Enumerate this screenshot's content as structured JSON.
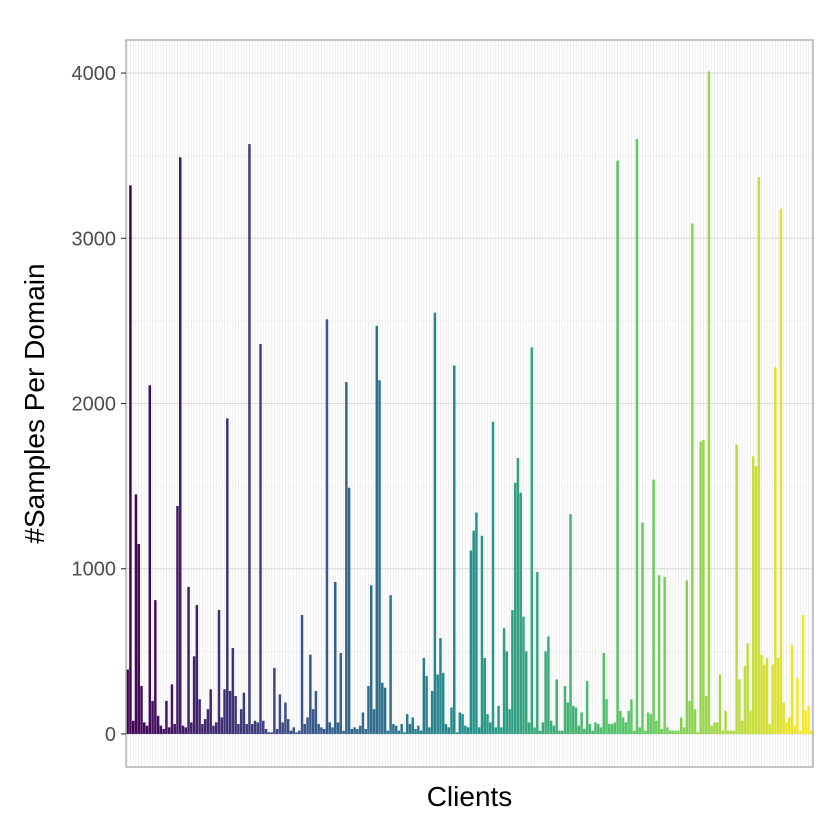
{
  "chart_data": {
    "type": "bar",
    "title": "",
    "xlabel": "Clients",
    "ylabel": "#Samples Per Domain",
    "ylim": [
      -200,
      4200
    ],
    "yticks": [
      0,
      1000,
      2000,
      3000,
      4000
    ],
    "grid": true,
    "legend": "none",
    "palette": [
      "#440154",
      "#3b528b",
      "#21908c",
      "#5dc963",
      "#fde725"
    ],
    "values": [
      390,
      3320,
      80,
      1450,
      1150,
      290,
      70,
      50,
      2110,
      200,
      810,
      110,
      50,
      30,
      200,
      40,
      300,
      60,
      1380,
      3490,
      50,
      40,
      890,
      70,
      470,
      780,
      210,
      60,
      90,
      150,
      270,
      50,
      70,
      750,
      100,
      270,
      1910,
      260,
      520,
      230,
      60,
      150,
      250,
      60,
      3570,
      60,
      80,
      70,
      2360,
      80,
      30,
      10,
      10,
      400,
      30,
      240,
      70,
      190,
      90,
      20,
      40,
      10,
      20,
      720,
      60,
      100,
      480,
      150,
      260,
      60,
      40,
      30,
      2510,
      70,
      40,
      920,
      70,
      490,
      20,
      2130,
      1490,
      30,
      40,
      30,
      50,
      130,
      30,
      290,
      900,
      150,
      2470,
      2140,
      310,
      280,
      20,
      840,
      60,
      50,
      20,
      60,
      10,
      120,
      60,
      100,
      30,
      50,
      20,
      460,
      350,
      40,
      260,
      2550,
      360,
      580,
      370,
      60,
      40,
      160,
      2230,
      10,
      130,
      120,
      50,
      40,
      1110,
      1230,
      1340,
      40,
      1200,
      460,
      120,
      70,
      1890,
      40,
      170,
      40,
      640,
      500,
      150,
      750,
      1520,
      1670,
      1460,
      710,
      500,
      70,
      2340,
      40,
      980,
      20,
      70,
      500,
      590,
      80,
      50,
      330,
      20,
      20,
      290,
      190,
      1330,
      170,
      160,
      50,
      130,
      30,
      320,
      60,
      20,
      70,
      60,
      40,
      490,
      210,
      60,
      60,
      70,
      3470,
      140,
      100,
      70,
      140,
      210,
      20,
      3600,
      40,
      1280,
      20,
      130,
      120,
      1540,
      80,
      960,
      30,
      950,
      40,
      20,
      20,
      20,
      20,
      100,
      40,
      930,
      200,
      3090,
      150,
      10,
      1770,
      1780,
      230,
      4010,
      50,
      70,
      70,
      360,
      20,
      140,
      20,
      20,
      20,
      1750,
      330,
      80,
      410,
      550,
      140,
      1680,
      1620,
      3370,
      480,
      420,
      460,
      60,
      420,
      2220,
      460,
      3180,
      190,
      70,
      100,
      540,
      50,
      340,
      20,
      720,
      140,
      170,
      20
    ]
  }
}
